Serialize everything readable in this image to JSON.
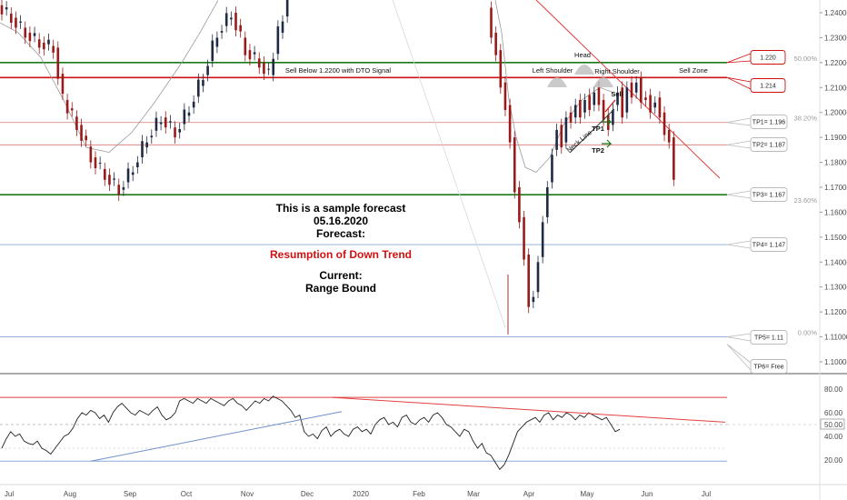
{
  "chart_data": [
    {
      "type": "candlestick",
      "price_axis": {
        "ylim": [
          1.095,
          1.245
        ],
        "ticks": [
          "1.24000",
          "1.23000",
          "1.22000",
          "1.21000",
          "1.20000",
          "1.19000",
          "1.18000",
          "1.17000",
          "1.16000",
          "1.15000",
          "1.14000",
          "1.13000",
          "1.12000",
          "1.11000",
          "1.10000"
        ],
        "tick_values": [
          1.24,
          1.23,
          1.22,
          1.21,
          1.2,
          1.19,
          1.18,
          1.17,
          1.16,
          1.15,
          1.14,
          1.13,
          1.12,
          1.11,
          1.1
        ]
      },
      "time_axis": {
        "labels": [
          "Jul",
          "Aug",
          "Sep",
          "Oct",
          "Nov",
          "Dec",
          "2020",
          "Feb",
          "Mar",
          "Apr",
          "May",
          "Jun",
          "Jul"
        ]
      },
      "ohlc_close_path": [
        {
          "t": 0,
          "c": 1.243
        },
        {
          "t": 3,
          "c": 1.238
        },
        {
          "t": 6,
          "c": 1.232
        },
        {
          "t": 9,
          "c": 1.228
        },
        {
          "t": 12,
          "c": 1.226
        },
        {
          "t": 14,
          "c": 1.205
        },
        {
          "t": 17,
          "c": 1.195
        },
        {
          "t": 20,
          "c": 1.182
        },
        {
          "t": 23,
          "c": 1.175
        },
        {
          "t": 26,
          "c": 1.169
        },
        {
          "t": 29,
          "c": 1.178
        },
        {
          "t": 32,
          "c": 1.19
        },
        {
          "t": 35,
          "c": 1.198
        },
        {
          "t": 38,
          "c": 1.192
        },
        {
          "t": 41,
          "c": 1.202
        },
        {
          "t": 44,
          "c": 1.215
        },
        {
          "t": 47,
          "c": 1.232
        },
        {
          "t": 50,
          "c": 1.24
        },
        {
          "t": 53,
          "c": 1.225
        },
        {
          "t": 56,
          "c": 1.22
        },
        {
          "t": 58,
          "c": 1.215
        },
        {
          "t": 60,
          "c": 1.232
        },
        {
          "t": 62,
          "c": 1.245
        },
        {
          "t": 110,
          "c": 1.242
        },
        {
          "t": 111,
          "c": 1.232
        },
        {
          "t": 112,
          "c": 1.225
        },
        {
          "t": 113,
          "c": 1.212
        },
        {
          "t": 114,
          "c": 1.203
        },
        {
          "t": 115,
          "c": 1.19
        },
        {
          "t": 116,
          "c": 1.17
        },
        {
          "t": 117,
          "c": 1.158
        },
        {
          "t": 118,
          "c": 1.143
        },
        {
          "t": 119,
          "c": 1.124
        },
        {
          "t": 120,
          "c": 1.128
        },
        {
          "t": 121,
          "c": 1.142
        },
        {
          "t": 122,
          "c": 1.158
        },
        {
          "t": 123,
          "c": 1.172
        },
        {
          "t": 124,
          "c": 1.185
        },
        {
          "t": 125,
          "c": 1.195
        },
        {
          "t": 126,
          "c": 1.188
        },
        {
          "t": 127,
          "c": 1.2
        },
        {
          "t": 128,
          "c": 1.198
        },
        {
          "t": 129,
          "c": 1.205
        },
        {
          "t": 130,
          "c": 1.2
        },
        {
          "t": 131,
          "c": 1.207
        },
        {
          "t": 132,
          "c": 1.203
        },
        {
          "t": 133,
          "c": 1.21
        },
        {
          "t": 134,
          "c": 1.205
        },
        {
          "t": 135,
          "c": 1.199
        },
        {
          "t": 136,
          "c": 1.195
        },
        {
          "t": 137,
          "c": 1.203
        },
        {
          "t": 138,
          "c": 1.21
        },
        {
          "t": 139,
          "c": 1.2
        },
        {
          "t": 140,
          "c": 1.212
        },
        {
          "t": 141,
          "c": 1.208
        },
        {
          "t": 142,
          "c": 1.214
        },
        {
          "t": 143,
          "c": 1.206
        },
        {
          "t": 144,
          "c": 1.207
        },
        {
          "t": 145,
          "c": 1.202
        },
        {
          "t": 146,
          "c": 1.206
        },
        {
          "t": 147,
          "c": 1.2
        },
        {
          "t": 148,
          "c": 1.193
        },
        {
          "t": 149,
          "c": 1.19
        },
        {
          "t": 150,
          "c": 1.175
        }
      ],
      "levels": [
        {
          "name": "TP1= 1.196",
          "value": 1.196,
          "color": "#d98a8a",
          "style": "thin"
        },
        {
          "name": "TP2= 1.187",
          "value": 1.187,
          "color": "#d98a8a",
          "style": "thin"
        },
        {
          "name": "TP3= 1.167",
          "value": 1.167,
          "color": "#1a7a1a",
          "style": "thick"
        },
        {
          "name": "TP4= 1.147",
          "value": 1.147,
          "color": "#8aaad8",
          "style": "thin"
        },
        {
          "name": "TP5= 1.11",
          "value": 1.11,
          "color": "#8aaad8",
          "style": "thin"
        },
        {
          "name": "1.220",
          "value": 1.22,
          "color": "#1a7a1a",
          "style": "thick"
        },
        {
          "name": "1.214",
          "value": 1.214,
          "color": "#d01010",
          "style": "thick"
        }
      ],
      "fib_labels": [
        "50.00%",
        "38.20%",
        "23.60%",
        "0.00%"
      ],
      "callouts": [
        "1.220",
        "1.214",
        "TP1= 1.196",
        "TP2= 1.187",
        "TP3= 1.167",
        "TP4= 1.147",
        "TP5= 1.11",
        "TP6= Free"
      ],
      "annotations": {
        "sell_below": "Sell Below 1.2200 with DTO Signal",
        "sell_zone": "Sell Zone",
        "head": "Head",
        "left_shoulder": "Left Shoulder",
        "right_shoulder": "Right Shoulder",
        "neck_line": "Neck Line",
        "sell": "Sell",
        "tp1": "TP1",
        "tp2": "TP2"
      },
      "forecast_text": {
        "line1": "This is a sample forecast",
        "line2": "05.16.2020",
        "line3": "Forecast:",
        "forecast": "Resumption of Down Trend",
        "current_label": "Current:",
        "current": "Range Bound"
      }
    },
    {
      "type": "line",
      "indicator": "oscillator",
      "ylim": [
        0,
        100
      ],
      "ticks": [
        "80.00",
        "60.00",
        "50.00",
        "40.00",
        "20.00"
      ],
      "tick_values": [
        80,
        60,
        50,
        40,
        20
      ],
      "levels": [
        73,
        50,
        30,
        19
      ],
      "values": [
        30,
        38,
        44,
        40,
        42,
        36,
        34,
        33,
        36,
        30,
        28,
        25,
        30,
        35,
        40,
        42,
        47,
        55,
        60,
        58,
        62,
        60,
        55,
        58,
        52,
        60,
        65,
        68,
        64,
        60,
        58,
        62,
        60,
        58,
        62,
        65,
        58,
        54,
        56,
        60,
        70,
        72,
        70,
        68,
        72,
        70,
        68,
        72,
        70,
        68,
        66,
        70,
        72,
        68,
        66,
        62,
        66,
        70,
        68,
        72,
        70,
        74,
        72,
        70,
        66,
        62,
        56,
        58,
        44,
        40,
        42,
        38,
        45,
        48,
        40,
        44,
        46,
        42,
        40,
        46,
        48,
        44,
        46,
        42,
        50,
        54,
        56,
        50,
        52,
        48,
        56,
        58,
        52,
        50,
        54,
        56,
        52,
        58,
        60,
        56,
        50,
        48,
        44,
        40,
        46,
        44,
        36,
        30,
        34,
        26,
        24,
        18,
        12,
        16,
        24,
        34,
        44,
        48,
        52,
        54,
        56,
        52,
        58,
        60,
        54,
        58,
        56,
        60,
        58,
        54,
        58,
        56,
        60,
        58,
        56,
        54,
        56,
        50,
        44,
        46
      ],
      "selected_value_label": "50.00"
    }
  ]
}
